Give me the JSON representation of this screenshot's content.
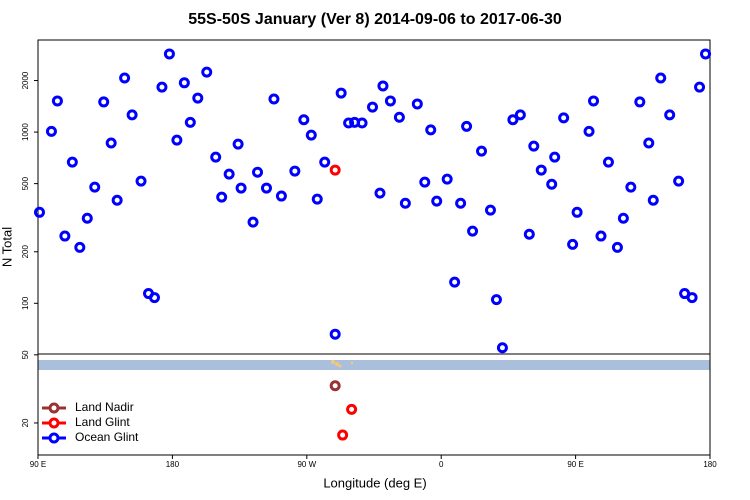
{
  "chart_data": {
    "type": "scatter",
    "title": "55S-50S January (Ver 8)   2014-09-06 to 2017-06-30",
    "x_label": "Longitude (deg E)",
    "y_label": "N Total",
    "log_y": true,
    "grid": false,
    "legend": "lower left",
    "xlim": [
      90,
      540
    ],
    "ylim": [
      13,
      3450
    ],
    "xticks": [
      {
        "value": 90,
        "label": "90 E"
      },
      {
        "value": 180,
        "label": "180"
      },
      {
        "value": 270,
        "label": "90 W"
      },
      {
        "value": 360,
        "label": "0"
      },
      {
        "value": 450,
        "label": "90 E"
      },
      {
        "value": 540,
        "label": "180"
      }
    ],
    "yticks": [
      20,
      50,
      100,
      200,
      500,
      1000,
      2000
    ],
    "series": [
      {
        "name": "Land Nadir",
        "color": "#993333",
        "x": [
          289
        ],
        "values": [
          33
        ]
      },
      {
        "name": "Land Glint",
        "color": "#ff0000",
        "x": [
          289,
          300,
          294
        ],
        "values": [
          600,
          24,
          17
        ]
      },
      {
        "name": "Ocean Glint",
        "color": "#0000ff",
        "x": [
          91,
          99,
          103,
          108,
          113,
          118,
          123,
          128,
          134,
          139,
          143,
          148,
          153,
          159,
          164,
          168,
          173,
          178,
          183,
          188,
          192,
          197,
          203,
          209,
          213,
          218,
          224,
          226,
          234,
          237,
          243,
          248,
          253,
          262,
          268,
          273,
          277,
          282,
          289,
          293,
          298,
          302,
          307,
          314,
          319,
          321,
          326,
          332,
          336,
          344,
          349,
          353,
          357,
          364,
          369,
          373,
          377,
          381,
          387,
          393,
          397,
          401,
          408,
          413,
          419,
          422,
          427,
          434,
          436,
          442,
          448,
          451,
          459,
          462,
          467,
          472,
          478,
          482,
          487,
          493,
          499,
          502,
          507,
          513,
          519,
          523,
          528,
          533,
          537
        ],
        "values": [
          340,
          1010,
          1520,
          247,
          668,
          212,
          314,
          477,
          1500,
          863,
          400,
          2070,
          1260,
          517,
          114,
          108,
          1830,
          2860,
          898,
          1940,
          1140,
          1580,
          2240,
          714,
          417,
          568,
          851,
          471,
          298,
          583,
          471,
          1560,
          423,
          592,
          1180,
          960,
          406,
          668,
          66,
          1690,
          1130,
          1140,
          1130,
          1400,
          440,
          1860,
          1520,
          1220,
          384,
          1460,
          510,
          1030,
          395,
          531,
          133,
          384,
          1080,
          264,
          774,
          350,
          105,
          55,
          1180,
          1260,
          253,
          828,
          600,
          496,
          714,
          1210,
          221,
          340,
          1010,
          1520,
          247,
          668,
          212,
          314,
          477,
          1500,
          863,
          400,
          2070,
          1260,
          517,
          114,
          108,
          1830,
          2860
        ]
      }
    ]
  }
}
